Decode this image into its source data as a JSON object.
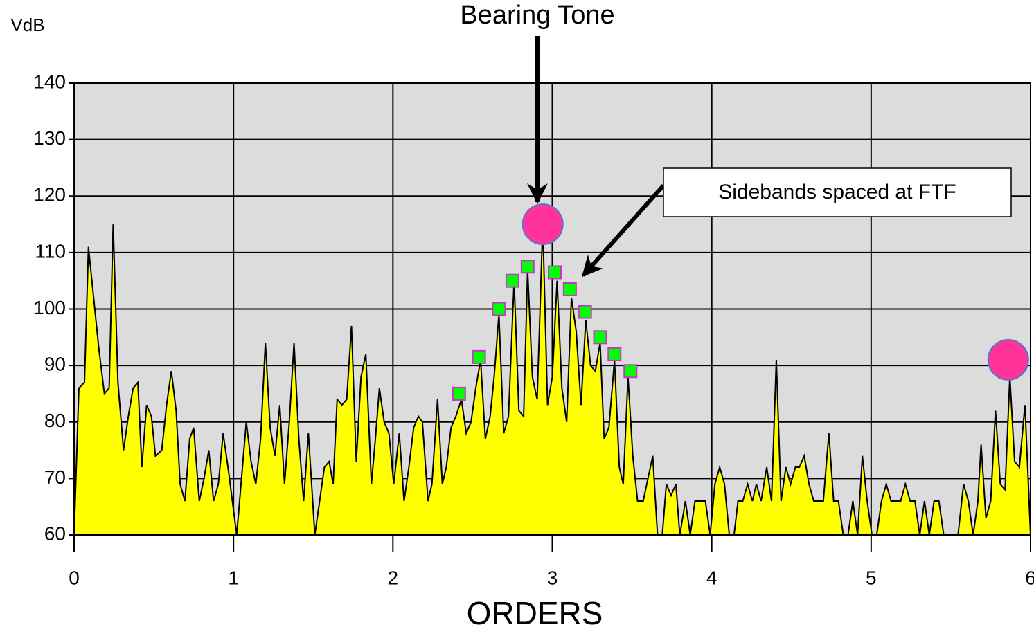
{
  "chart_data": {
    "type": "area",
    "title": "Bearing Tone",
    "y_label": "VdB",
    "x_label": "ORDERS",
    "annotation": "Sidebands spaced at FTF",
    "xlim": [
      0,
      6
    ],
    "xticks": [
      0,
      1,
      2,
      3,
      4,
      5,
      6
    ],
    "ylim": [
      60,
      140
    ],
    "yticks": [
      60,
      70,
      80,
      90,
      100,
      110,
      120,
      130,
      140
    ],
    "grid": true,
    "background": "#dcdcdc",
    "series": [
      {
        "type": "area",
        "color": "#ffff00",
        "line_color": "#000000",
        "x": [
          0,
          0.03,
          0.065,
          0.09,
          0.155,
          0.19,
          0.22,
          0.245,
          0.275,
          0.31,
          0.34,
          0.37,
          0.4,
          0.425,
          0.455,
          0.485,
          0.51,
          0.55,
          0.58,
          0.61,
          0.64,
          0.665,
          0.695,
          0.725,
          0.75,
          0.785,
          0.815,
          0.845,
          0.875,
          0.905,
          0.935,
          0.97,
          1.02,
          1.08,
          1.11,
          1.14,
          1.17,
          1.2,
          1.23,
          1.26,
          1.29,
          1.32,
          1.35,
          1.38,
          1.41,
          1.44,
          1.47,
          1.51,
          1.54,
          1.57,
          1.6,
          1.625,
          1.65,
          1.68,
          1.71,
          1.74,
          1.77,
          1.8,
          1.83,
          1.865,
          1.89,
          1.915,
          1.945,
          1.975,
          2.005,
          2.04,
          2.07,
          2.1,
          2.13,
          2.16,
          2.185,
          2.22,
          2.245,
          2.28,
          2.31,
          2.335,
          2.365,
          2.395,
          2.43,
          2.46,
          2.49,
          2.52,
          2.55,
          2.58,
          2.61,
          2.635,
          2.665,
          2.695,
          2.725,
          2.76,
          2.79,
          2.82,
          2.845,
          2.875,
          2.905,
          2.94,
          2.97,
          3.0,
          3.03,
          3.06,
          3.09,
          3.12,
          3.15,
          3.18,
          3.21,
          3.24,
          3.27,
          3.3,
          3.325,
          3.355,
          3.39,
          3.42,
          3.445,
          3.475,
          3.505,
          3.535,
          3.57,
          3.63,
          3.66,
          3.69,
          3.715,
          3.745,
          3.775,
          3.8,
          3.835,
          3.865,
          3.895,
          3.96,
          3.99,
          4.02,
          4.05,
          4.08,
          4.11,
          4.14,
          4.165,
          4.195,
          4.225,
          4.255,
          4.28,
          4.31,
          4.345,
          4.375,
          4.405,
          4.435,
          4.465,
          4.495,
          4.525,
          4.55,
          4.58,
          4.61,
          4.64,
          4.7,
          4.735,
          4.765,
          4.795,
          4.825,
          4.855,
          4.885,
          4.915,
          4.945,
          4.975,
          5.005,
          5.035,
          5.065,
          5.095,
          5.125,
          5.185,
          5.215,
          5.245,
          5.275,
          5.305,
          5.335,
          5.365,
          5.395,
          5.425,
          5.455,
          5.545,
          5.58,
          5.61,
          5.64,
          5.67,
          5.69,
          5.72,
          5.75,
          5.78,
          5.81,
          5.84,
          5.87,
          5.9,
          5.93,
          5.965,
          6.0
        ],
        "values": [
          60,
          86,
          87,
          111,
          93,
          85,
          86,
          115,
          87,
          75,
          81,
          86,
          87,
          72,
          83,
          81,
          74,
          75,
          83,
          89,
          82,
          69,
          66,
          77,
          79,
          66,
          70,
          75,
          66,
          69,
          78,
          71,
          60,
          80,
          73,
          69,
          77,
          94,
          79,
          74,
          83,
          69,
          80,
          94,
          77,
          66,
          78,
          60,
          66,
          72,
          73,
          69,
          84,
          83,
          84,
          97,
          73,
          88,
          92,
          69,
          77,
          86,
          80,
          78,
          69,
          78,
          66,
          72,
          79,
          81,
          80,
          66,
          69,
          84,
          69,
          72,
          79,
          81,
          84,
          78,
          80,
          86,
          91,
          77,
          81,
          88,
          99,
          78,
          81,
          105,
          82,
          81,
          107,
          88,
          84,
          115,
          83,
          88,
          105,
          86,
          80,
          102,
          96,
          83,
          98,
          90,
          89,
          94,
          77,
          79,
          91,
          72,
          69,
          88,
          74,
          66,
          66,
          74,
          60,
          60,
          69,
          67,
          69,
          60,
          66,
          60,
          66,
          66,
          60,
          69,
          72,
          69,
          60,
          60,
          66,
          66,
          69,
          66,
          69,
          66,
          72,
          66,
          91,
          66,
          72,
          69,
          72,
          72,
          74,
          69,
          66,
          66,
          78,
          66,
          66,
          60,
          60,
          66,
          60,
          74,
          66,
          60,
          60,
          66,
          69,
          66,
          66,
          69,
          66,
          66,
          60,
          66,
          60,
          66,
          66,
          60,
          60,
          69,
          66,
          60,
          66,
          76,
          63,
          66,
          82,
          69,
          68,
          88,
          73,
          72,
          83,
          60
        ]
      },
      {
        "type": "scatter",
        "marker": "square",
        "color": "#00ff00",
        "edge_color": "#cc33cc",
        "x": [
          2.415,
          2.54,
          2.665,
          2.75,
          2.845,
          3.015,
          3.11,
          3.205,
          3.3,
          3.39,
          3.49
        ],
        "values": [
          85,
          91.5,
          100,
          105,
          107.5,
          106.5,
          103.5,
          99.5,
          95,
          92,
          89
        ]
      },
      {
        "type": "scatter",
        "marker": "circle",
        "color": "#ff3399",
        "edge_color": "#5577cc",
        "x": [
          2.94,
          5.86
        ],
        "values": [
          115,
          91
        ]
      }
    ]
  }
}
